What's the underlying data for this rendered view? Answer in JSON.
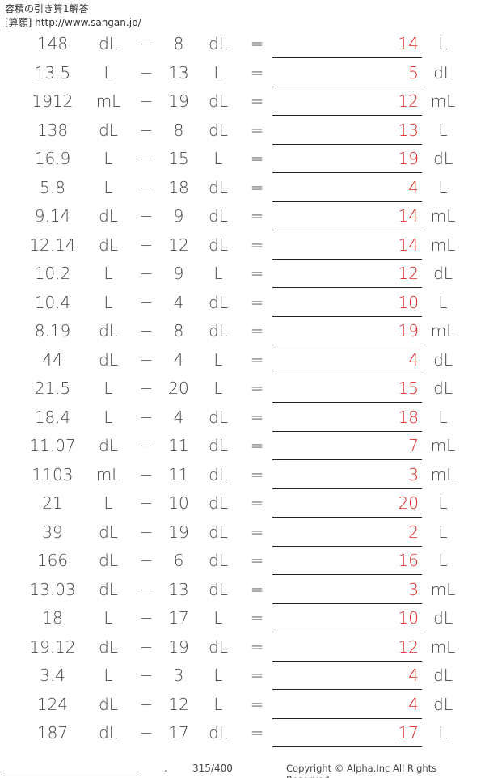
{
  "header": {
    "title": "容積の引き算1解答",
    "source": "[算願] http://www.sangan.jp/"
  },
  "operator": "−",
  "equals": "=",
  "answer_color": "#e02020",
  "problems": [
    {
      "a": "148",
      "u1": "dL",
      "b": "8",
      "u2": "dL",
      "ans": "14",
      "u3": "L"
    },
    {
      "a": "13.5",
      "u1": "L",
      "b": "13",
      "u2": "L",
      "ans": "5",
      "u3": "dL"
    },
    {
      "a": "1912",
      "u1": "mL",
      "b": "19",
      "u2": "dL",
      "ans": "12",
      "u3": "mL"
    },
    {
      "a": "138",
      "u1": "dL",
      "b": "8",
      "u2": "dL",
      "ans": "13",
      "u3": "L"
    },
    {
      "a": "16.9",
      "u1": "L",
      "b": "15",
      "u2": "L",
      "ans": "19",
      "u3": "dL"
    },
    {
      "a": "5.8",
      "u1": "L",
      "b": "18",
      "u2": "dL",
      "ans": "4",
      "u3": "L"
    },
    {
      "a": "9.14",
      "u1": "dL",
      "b": "9",
      "u2": "dL",
      "ans": "14",
      "u3": "mL"
    },
    {
      "a": "12.14",
      "u1": "dL",
      "b": "12",
      "u2": "dL",
      "ans": "14",
      "u3": "mL"
    },
    {
      "a": "10.2",
      "u1": "L",
      "b": "9",
      "u2": "L",
      "ans": "12",
      "u3": "dL"
    },
    {
      "a": "10.4",
      "u1": "L",
      "b": "4",
      "u2": "dL",
      "ans": "10",
      "u3": "L"
    },
    {
      "a": "8.19",
      "u1": "dL",
      "b": "8",
      "u2": "dL",
      "ans": "19",
      "u3": "mL"
    },
    {
      "a": "44",
      "u1": "dL",
      "b": "4",
      "u2": "L",
      "ans": "4",
      "u3": "dL"
    },
    {
      "a": "21.5",
      "u1": "L",
      "b": "20",
      "u2": "L",
      "ans": "15",
      "u3": "dL"
    },
    {
      "a": "18.4",
      "u1": "L",
      "b": "4",
      "u2": "dL",
      "ans": "18",
      "u3": "L"
    },
    {
      "a": "11.07",
      "u1": "dL",
      "b": "11",
      "u2": "dL",
      "ans": "7",
      "u3": "mL"
    },
    {
      "a": "1103",
      "u1": "mL",
      "b": "11",
      "u2": "dL",
      "ans": "3",
      "u3": "mL"
    },
    {
      "a": "21",
      "u1": "L",
      "b": "10",
      "u2": "dL",
      "ans": "20",
      "u3": "L"
    },
    {
      "a": "39",
      "u1": "dL",
      "b": "19",
      "u2": "dL",
      "ans": "2",
      "u3": "L"
    },
    {
      "a": "166",
      "u1": "dL",
      "b": "6",
      "u2": "dL",
      "ans": "16",
      "u3": "L"
    },
    {
      "a": "13.03",
      "u1": "dL",
      "b": "13",
      "u2": "dL",
      "ans": "3",
      "u3": "mL"
    },
    {
      "a": "18",
      "u1": "L",
      "b": "17",
      "u2": "L",
      "ans": "10",
      "u3": "dL"
    },
    {
      "a": "19.12",
      "u1": "dL",
      "b": "19",
      "u2": "dL",
      "ans": "12",
      "u3": "mL"
    },
    {
      "a": "3.4",
      "u1": "L",
      "b": "3",
      "u2": "L",
      "ans": "4",
      "u3": "dL"
    },
    {
      "a": "124",
      "u1": "dL",
      "b": "12",
      "u2": "L",
      "ans": "4",
      "u3": "dL"
    },
    {
      "a": "187",
      "u1": "dL",
      "b": "17",
      "u2": "dL",
      "ans": "17",
      "u3": "L"
    }
  ],
  "footer": {
    "dot": ".",
    "page": "315/400",
    "copyright": "Copyright © Alpha.Inc All Rights Reserved."
  }
}
